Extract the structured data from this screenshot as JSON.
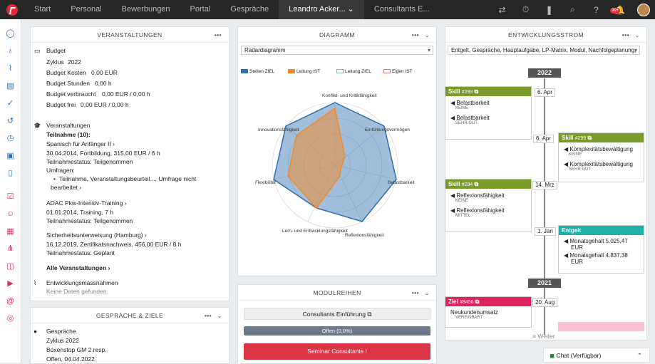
{
  "nav": {
    "items": [
      "Start",
      "Personal",
      "Bewerbungen",
      "Portal",
      "Gespräche"
    ],
    "active": "Leandro Acker...",
    "after": "Consultants E...",
    "badge": "99+"
  },
  "left": {
    "title": "VERANSTALTUNGEN",
    "budget": {
      "label": "Budget",
      "zyklus": "Zyklus",
      "zyklus_val": "2022",
      "kosten": "Budget Kosten",
      "kosten_val": "0,00 EUR",
      "stunden": "Budget Stunden",
      "stunden_val": "0,00 h",
      "verbraucht": "Budget verbraucht",
      "verbraucht_val": "0,00 EUR / 0,00 h",
      "frei": "Budget frei",
      "frei_val": "0,00 EUR / 0,00 h"
    },
    "veranst": {
      "label": "Veranstaltungen",
      "teilnahme": "Teilnahme (10):",
      "e1_title": "Spanisch für Anfänger II",
      "e1_date": "30.04.2014, Fortbildung, 315,00 EUR / 6 h",
      "e1_status": "Teilnahmestatus: Teilgenommen",
      "e1_umfragen": "Umfragen:",
      "e1_bullet": "Teilnahme, Veranstaltungsbeurteil..., Umfrage nicht",
      "e1_bullet2": "bearbeitet",
      "e2_title": "ADAC Pkw-Intensiv-Training",
      "e2_date": "01.01.2014, Training, 7 h",
      "e2_status": "Teilnahmestatus: Teilgenommen",
      "e3_title": "Sicherheitsunterweisung (Hamburg)",
      "e3_date": "16.12.2019, Zertifikatsnachweis, 456,00 EUR / 8 h",
      "e3_status": "Teilnahmestatus: Geplant",
      "all": "Alle Veranstaltungen"
    },
    "entw": {
      "label": "Entwicklungsmassnahmen",
      "empty": "Keine Daten gefunden."
    }
  },
  "left2": {
    "title": "GESPRÄCHE & ZIELE",
    "label": "Gespräche",
    "zyklus": "Zyklus 2022",
    "name": "Boxenstop GM 2 resp.",
    "status": "Offen, 04.04.2022"
  },
  "diagram": {
    "title": "DIAGRAMM",
    "select": "Radardiagramm",
    "legend": [
      {
        "name": "Stellen ZIEL",
        "color": "#2f6fb0"
      },
      {
        "name": "Leitung IST",
        "color": "#f08a30"
      },
      {
        "name": "Leitung ZIEL",
        "color": "#7ac29a"
      },
      {
        "name": "Eigen IST",
        "color": "#e07a7a"
      }
    ],
    "axes": [
      "Konflikt- und Kritikfähigkeit",
      "Einfühlungsvermögen",
      "Belastbarkeit",
      "Reflexionsfähigkeit",
      "Lern- und Entwicklungsfähigkeit",
      "Flexibilität",
      "Innovationsfähigkeit"
    ]
  },
  "modul": {
    "title": "MODULREIHEN",
    "b1": "Consultants Einführung",
    "b2": "Offen (0,0%)",
    "b3": "Seminar Consultants I"
  },
  "strom": {
    "title": "ENTWICKLUNGSSTROM",
    "select": "Entgelt, Gespräche, Hauptaufgabe, LP-Matrix, Modul, Nachfolgeplanung,",
    "year1": "2022",
    "year2": "2021",
    "more": "≡ Weiter",
    "c1": {
      "head": "Skill",
      "num": "#293",
      "l1": "Belastbarkeit",
      "s1": "KEINE",
      "l2": "Belastbarkeit",
      "s2": "SEHR GUT",
      "date": "6. Apr"
    },
    "c2": {
      "head": "Skill",
      "num": "#299",
      "l1": "Komplexitätsbewältigung",
      "s1": "KEINE",
      "l2": "Komplexitätsbewältigung",
      "s2": "SEHR GUT",
      "date": "6. Apr"
    },
    "c3": {
      "head": "Skill",
      "num": "#294",
      "l1": "Reflexionsfähigkeit",
      "s1": "KEINE",
      "l2": "Reflexionsfähigkeit",
      "s2": "MITTEL",
      "date": "14. Mrz"
    },
    "c4": {
      "head": "Entgelt",
      "l1": "Monatsgehalt 5.025,47",
      "l1b": "EUR",
      "l2": "Monatsgehalt 4.837,38",
      "l2b": "EUR",
      "date": "1. Jan"
    },
    "c5": {
      "head": "Ziel",
      "num": "#8456",
      "l1": "Neukundenumsatz",
      "s1": "VEREINBART",
      "date": "20. Aug"
    }
  },
  "chat": {
    "label": "Chat (Verfügbar)"
  }
}
